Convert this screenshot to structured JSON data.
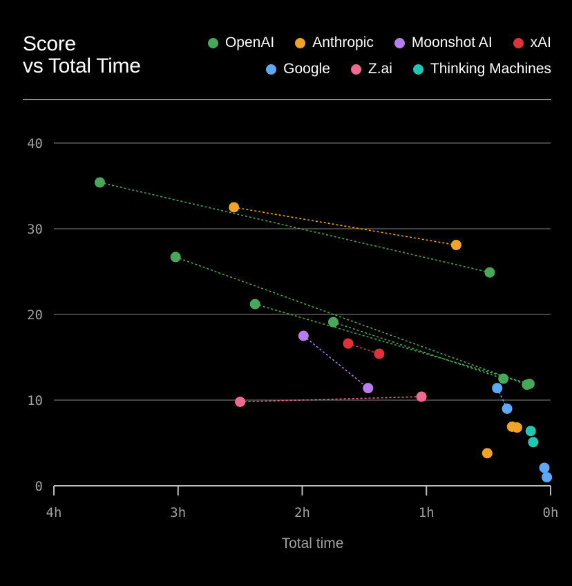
{
  "chart_data": {
    "type": "scatter",
    "title_lines": [
      "Score",
      "vs Total Time"
    ],
    "xlabel": "Total time",
    "ylabel": "",
    "xlim": [
      4,
      0
    ],
    "ylim": [
      0,
      40
    ],
    "x_ticks": [
      {
        "value": 4,
        "label": "4h"
      },
      {
        "value": 3,
        "label": "3h"
      },
      {
        "value": 2,
        "label": "2h"
      },
      {
        "value": 1,
        "label": "1h"
      },
      {
        "value": 0,
        "label": "0h"
      }
    ],
    "y_ticks": [
      {
        "value": 0,
        "label": "0"
      },
      {
        "value": 10,
        "label": "10"
      },
      {
        "value": 20,
        "label": "20"
      },
      {
        "value": 30,
        "label": "30"
      },
      {
        "value": 40,
        "label": "40"
      }
    ],
    "grid": true,
    "legend_position": "top-right",
    "series": [
      {
        "name": "OpenAI",
        "color": "#47a85a",
        "points": [
          {
            "x": 3.63,
            "y": 35.4
          },
          {
            "x": 0.49,
            "y": 24.9
          },
          {
            "x": 3.02,
            "y": 26.7
          },
          {
            "x": 2.38,
            "y": 21.2
          },
          {
            "x": 1.75,
            "y": 19.1
          },
          {
            "x": 0.38,
            "y": 12.5
          },
          {
            "x": 0.19,
            "y": 11.8
          },
          {
            "x": 0.17,
            "y": 11.9
          }
        ],
        "links": [
          [
            0,
            1
          ],
          [
            2,
            6
          ],
          [
            3,
            7
          ],
          [
            4,
            5
          ]
        ]
      },
      {
        "name": "Anthropic",
        "color": "#f1a325",
        "points": [
          {
            "x": 2.55,
            "y": 32.5
          },
          {
            "x": 0.76,
            "y": 28.1
          },
          {
            "x": 0.31,
            "y": 6.9
          },
          {
            "x": 0.27,
            "y": 6.8
          },
          {
            "x": 0.51,
            "y": 3.8
          }
        ],
        "links": [
          [
            0,
            1
          ]
        ]
      },
      {
        "name": "Moonshot AI",
        "color": "#b77de9",
        "points": [
          {
            "x": 1.99,
            "y": 17.5
          },
          {
            "x": 1.47,
            "y": 11.4
          }
        ],
        "links": [
          [
            0,
            1
          ]
        ]
      },
      {
        "name": "xAI",
        "color": "#e0313a",
        "points": [
          {
            "x": 1.63,
            "y": 16.6
          },
          {
            "x": 1.38,
            "y": 15.4
          }
        ],
        "links": [
          [
            0,
            1
          ]
        ]
      },
      {
        "name": "Google",
        "color": "#5ea9f5",
        "points": [
          {
            "x": 0.43,
            "y": 11.4
          },
          {
            "x": 0.35,
            "y": 9.0
          },
          {
            "x": 0.05,
            "y": 2.1
          },
          {
            "x": 0.03,
            "y": 1.0
          }
        ],
        "links": [
          [
            0,
            1
          ]
        ]
      },
      {
        "name": "Z.ai",
        "color": "#ef6a90",
        "points": [
          {
            "x": 2.5,
            "y": 9.8
          },
          {
            "x": 1.04,
            "y": 10.4
          }
        ],
        "links": [
          [
            0,
            1
          ]
        ]
      },
      {
        "name": "Thinking Machines",
        "color": "#21c7b0",
        "points": [
          {
            "x": 0.16,
            "y": 6.4
          },
          {
            "x": 0.14,
            "y": 5.1
          }
        ],
        "links": []
      }
    ]
  }
}
